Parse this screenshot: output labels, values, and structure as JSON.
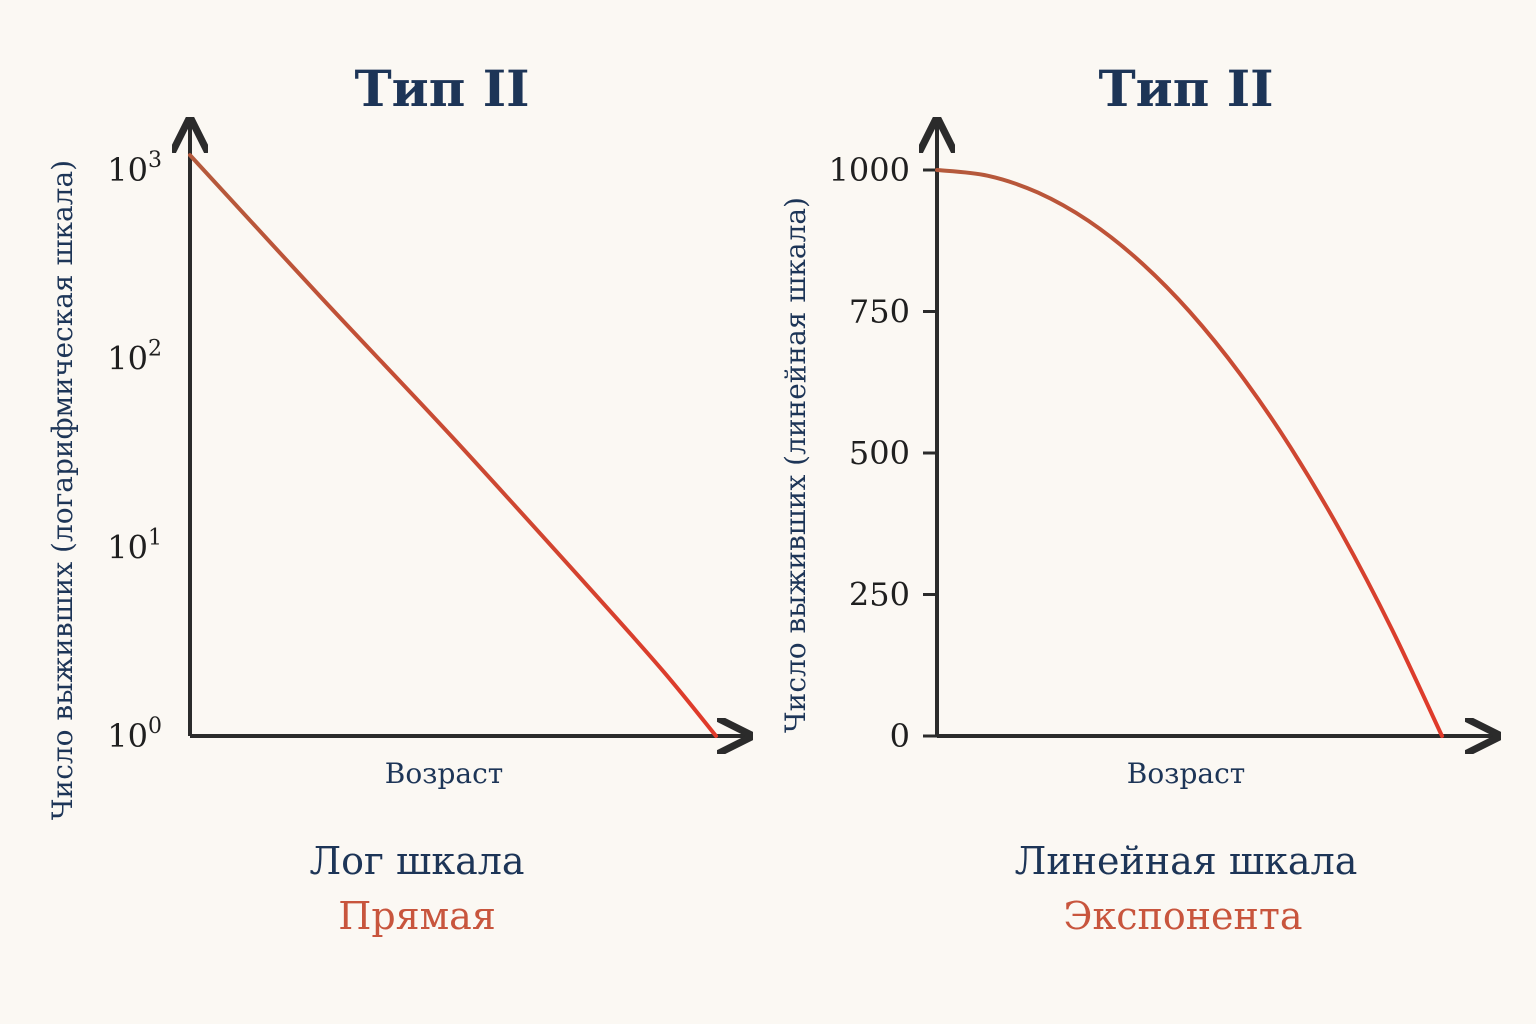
{
  "colors": {
    "background": "#fbf8f3",
    "title": "#1d3557",
    "axis": "#2b2b2b",
    "ink": "#1f1f1f",
    "curve_start": "#b45a3c",
    "curve_end": "#e03a2a",
    "caption_accent": "#c8553d"
  },
  "chart_data": [
    {
      "type": "line",
      "title": "Тип II",
      "xlabel": "Возраст",
      "ylabel": "Число выживших (логарифмическая шкала)",
      "yscale": "log",
      "ylim": [
        1,
        1000
      ],
      "ytick_base": "10",
      "yticks": [
        {
          "value": 1,
          "exp": "0"
        },
        {
          "value": 10,
          "exp": "1"
        },
        {
          "value": 100,
          "exp": "2"
        },
        {
          "value": 1000,
          "exp": "3"
        }
      ],
      "series": [
        {
          "x": [
            0,
            0.25,
            0.5,
            0.75,
            0.9,
            1.0
          ],
          "y": [
            1200,
            210,
            38,
            6.5,
            2.2,
            1
          ]
        }
      ],
      "caption_primary": "Лог шкала",
      "caption_secondary": "Прямая",
      "grid": false
    },
    {
      "type": "line",
      "title": "Тип II",
      "xlabel": "Возраст",
      "ylabel": "Число выживших (линейная шкала)",
      "yscale": "linear",
      "ylim": [
        0,
        1000
      ],
      "yticks": [
        {
          "value": 0,
          "label": "0"
        },
        {
          "value": 250,
          "label": "250"
        },
        {
          "value": 500,
          "label": "500"
        },
        {
          "value": 750,
          "label": "750"
        },
        {
          "value": 1000,
          "label": "1000"
        }
      ],
      "series": [
        {
          "x": [
            0,
            0.1,
            0.2,
            0.3,
            0.4,
            0.5,
            0.6,
            0.7,
            0.8,
            0.9,
            1.0
          ],
          "y": [
            1000,
            990,
            960,
            910,
            840,
            750,
            640,
            510,
            360,
            190,
            0
          ]
        }
      ],
      "caption_primary": "Линейная шкала",
      "caption_secondary": "Экспонента",
      "grid": false
    }
  ]
}
